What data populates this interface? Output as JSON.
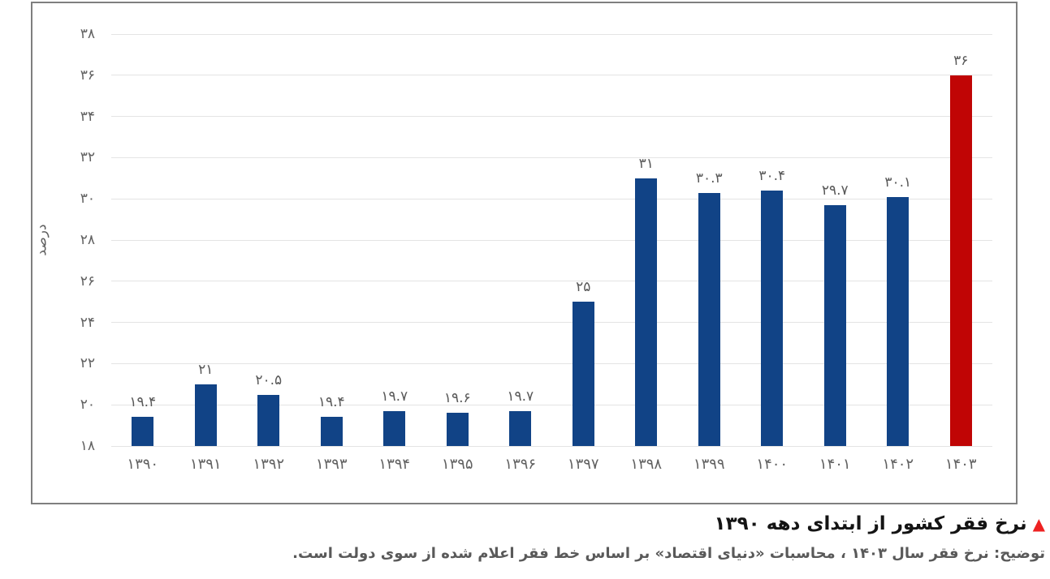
{
  "chart_data": {
    "type": "bar",
    "title": "نرخ فقر کشور از ابتدای دهه ۱۳۹۰",
    "note": "توضیح: نرخ فقر سال ۱۴۰۳ ، محاسبات «دنیای اقتصاد» بر اساس خط فقر اعلام شده از سوی دولت است.",
    "ylabel": "درصد",
    "ylim": [
      18,
      38
    ],
    "ytick_step": 2,
    "grid": true,
    "legend": "none",
    "categories": [
      "۱۳۹۰",
      "۱۳۹۱",
      "۱۳۹۲",
      "۱۳۹۳",
      "۱۳۹۴",
      "۱۳۹۵",
      "۱۳۹۶",
      "۱۳۹۷",
      "۱۳۹۸",
      "۱۳۹۹",
      "۱۴۰۰",
      "۱۴۰۱",
      "۱۴۰۲",
      "۱۴۰۳"
    ],
    "values": [
      19.4,
      21,
      20.5,
      19.4,
      19.7,
      19.6,
      19.7,
      25,
      31,
      30.3,
      30.4,
      29.7,
      30.1,
      36
    ],
    "value_labels": [
      "۱۹.۴",
      "۲۱",
      "۲۰.۵",
      "۱۹.۴",
      "۱۹.۷",
      "۱۹.۶",
      "۱۹.۷",
      "۲۵",
      "۳۱",
      "۳۰.۳",
      "۳۰.۴",
      "۲۹.۷",
      "۳۰.۱",
      "۳۶"
    ],
    "ytick_labels": [
      "۱۸",
      "۲۰",
      "۲۲",
      "۲۴",
      "۲۶",
      "۲۸",
      "۳۰",
      "۳۲",
      "۳۴",
      "۳۶",
      "۳۸"
    ],
    "colors": {
      "bar": "#114386",
      "highlight": "#c00505",
      "highlight_index": 13,
      "grid": "#e4e4e4",
      "frame": "#7f7f7f",
      "tick_text": "#616161",
      "value_text": "#595959",
      "title_text": "#141414",
      "note_text": "#595959",
      "triangle": "#ee2222"
    }
  },
  "caption": {
    "triangle_icon": "▲"
  }
}
